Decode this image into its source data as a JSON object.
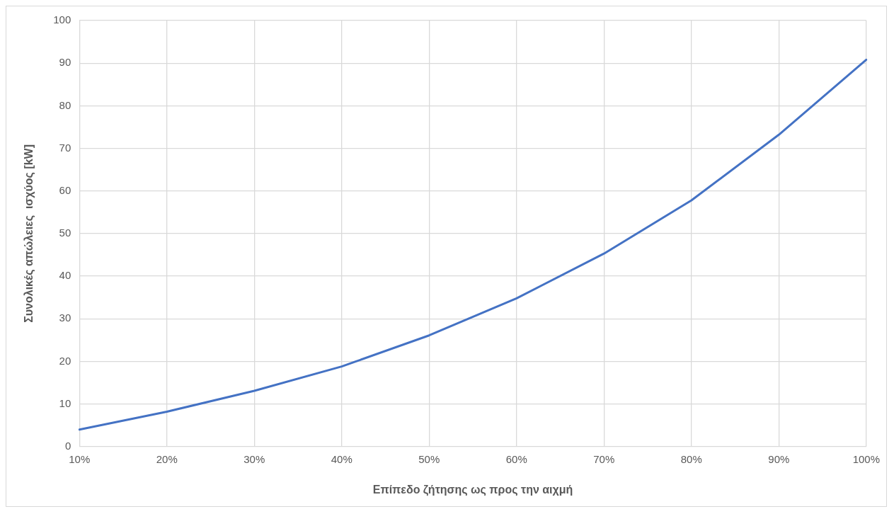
{
  "chart_data": {
    "type": "line",
    "xlabel": "Επίπεδο ζήτησης ως προς την αιχμή",
    "ylabel": "Συνολικές απώλειες  ισχύος [kW]",
    "categories": [
      "10%",
      "20%",
      "30%",
      "40%",
      "50%",
      "60%",
      "70%",
      "80%",
      "90%",
      "100%"
    ],
    "series": [
      {
        "color": "#4472c4",
        "values": [
          4.0,
          8.2,
          13.1,
          18.8,
          26.1,
          34.8,
          45.3,
          57.8,
          73.2,
          90.8
        ]
      }
    ],
    "ylim": [
      0,
      100
    ],
    "yticks": [
      0,
      10,
      20,
      30,
      40,
      50,
      60,
      70,
      80,
      90,
      100
    ],
    "grid": true,
    "legend": false,
    "marker": "none",
    "line_style": "solid"
  }
}
